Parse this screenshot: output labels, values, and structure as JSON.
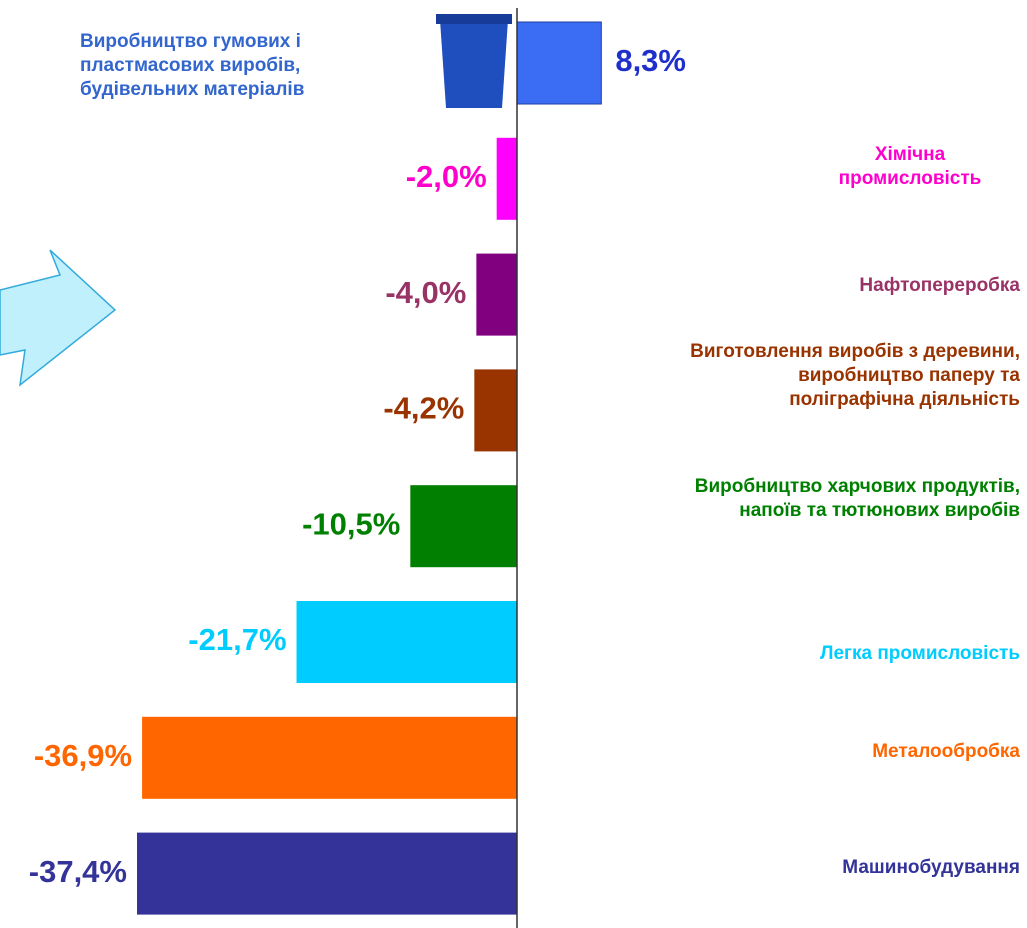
{
  "chart_data": {
    "type": "bar",
    "orientation": "horizontal",
    "categories": [
      "Виробництво гумових і пластмасових виробів, будівельних матеріалів",
      "Хімічна промисловість",
      "Нафтопереробка",
      "Виготовлення виробів з деревини, виробництво паперу та поліграфічна діяльність",
      "Виробництво харчових продуктів, напоїв та тютюнових виробів",
      "Легка промисловість",
      "Металообробка",
      "Машинобудування"
    ],
    "values": [
      8.3,
      -2.0,
      -4.0,
      -4.2,
      -10.5,
      -21.7,
      -36.9,
      -37.4
    ],
    "value_labels": [
      "8,3%",
      "-2,0%",
      "-4,0%",
      "-4,2%",
      "-10,5%",
      "-21,7%",
      "-36,9%",
      "-37,4%"
    ],
    "colors": [
      "#3a6cf4",
      "#ff00ff",
      "#800080",
      "#993300",
      "#007f00",
      "#00ccff",
      "#ff6600",
      "#333399"
    ],
    "label_colors": [
      "#3366cc",
      "#ff00cc",
      "#993366",
      "#993300",
      "#008000",
      "#00ccff",
      "#ff6600",
      "#333399"
    ]
  }
}
